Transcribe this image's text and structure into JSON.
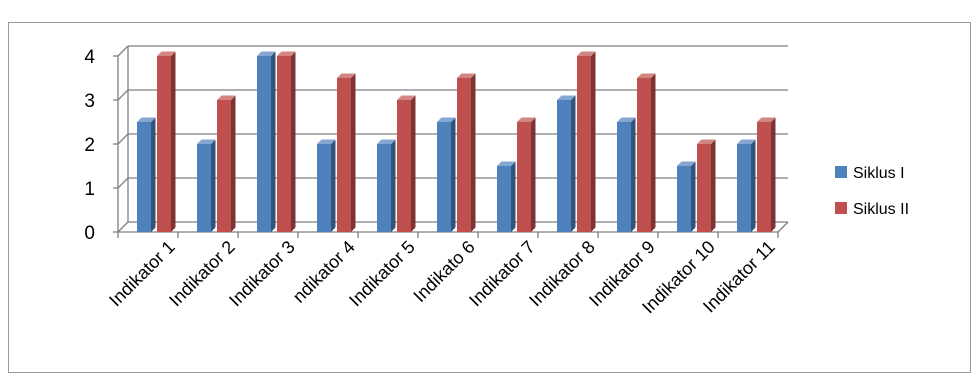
{
  "chart_data": {
    "type": "bar",
    "style": "3d-clustered-column",
    "title": "",
    "xlabel": "",
    "ylabel": "",
    "categories": [
      "Indikator 1",
      "Indikator 2",
      "Indikator 3",
      "ndikator 4",
      "Indikator 5",
      "Indikato 6",
      "Indikator 7",
      "Indikator 8",
      "Indikator 9",
      "Indikator 10",
      "Indikator 11"
    ],
    "series": [
      {
        "name": "Siklus I",
        "values": [
          2.5,
          2,
          4,
          2,
          2,
          2.5,
          1.5,
          3,
          2.5,
          1.5,
          2
        ],
        "color": "#4F81BD"
      },
      {
        "name": "Siklus II",
        "values": [
          4,
          3,
          4,
          3.5,
          3,
          3.5,
          2.5,
          4,
          3.5,
          2,
          2.5
        ],
        "color": "#C0504D"
      }
    ],
    "ylim": [
      0,
      4
    ],
    "yticks": [
      "0",
      "1",
      "2",
      "3",
      "4"
    ],
    "grid": true,
    "legend_position": "right"
  }
}
